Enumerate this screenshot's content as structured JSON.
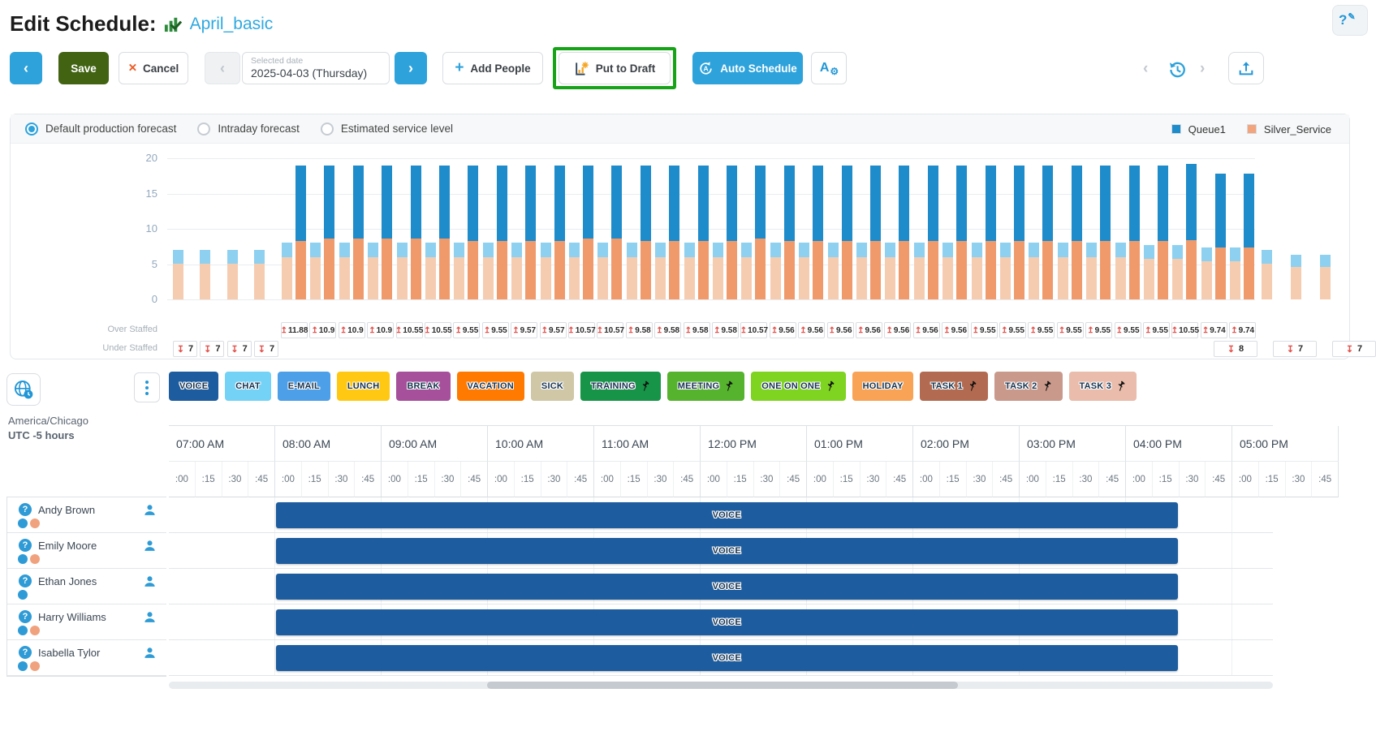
{
  "header": {
    "title": "Edit Schedule:",
    "schedule_name": "April_basic"
  },
  "icons": {
    "back": "‹",
    "next": "›",
    "prev": "‹",
    "plus": "+",
    "x": "✕",
    "question": "?",
    "pencil": "✎",
    "gear": "⚙",
    "letter_a": "A",
    "up_arrow": "↥",
    "down_arrow": "↧"
  },
  "toolbar": {
    "save": "Save",
    "cancel": "Cancel",
    "date_label": "Selected date",
    "date_value": "2025-04-03 (Thursday)",
    "add_people": "Add People",
    "put_to_draft": "Put to Draft",
    "auto_schedule": "Auto Schedule"
  },
  "forecast_panel": {
    "radios": [
      {
        "label": "Default production forecast",
        "selected": true
      },
      {
        "label": "Intraday forecast",
        "selected": false
      },
      {
        "label": "Estimated service level",
        "selected": false
      }
    ],
    "legend": [
      {
        "label": "Queue1",
        "color": "#1e8bcb"
      },
      {
        "label": "Silver_Service",
        "color": "#f2a47d"
      }
    ]
  },
  "chart_data": {
    "type": "bar",
    "title": "Default production forecast",
    "ylim": [
      0,
      20
    ],
    "yticks": [
      0,
      5,
      10,
      15,
      20
    ],
    "grid": true,
    "legend_position": "top-right",
    "colors": {
      "queue1_scheduled": "#1e8bcb",
      "queue1_forecast": "#8ed0f0",
      "silver_scheduled": "#f09a6c",
      "silver_forecast": "#f6ccb1"
    },
    "pre_shift_forecast": {
      "silver": [
        5,
        5,
        5,
        5
      ],
      "queue1": [
        2,
        2,
        2,
        2
      ]
    },
    "intervals": {
      "over_staffed": [
        "11.88",
        "10.9",
        "10.9",
        "10.9",
        "10.55",
        "10.55",
        "9.55",
        "9.55",
        "9.57",
        "9.57",
        "10.57",
        "10.57",
        "9.58",
        "9.58",
        "9.58",
        "9.58",
        "10.57",
        "9.56",
        "9.56",
        "9.56",
        "9.56",
        "9.56",
        "9.56",
        "9.56",
        "9.55",
        "9.55",
        "9.55",
        "9.55",
        "9.55",
        "9.55",
        "9.55",
        "10.55",
        "9.74",
        "9.74"
      ],
      "forecast_silver": [
        6,
        6,
        6,
        6,
        6,
        6,
        6,
        6,
        6,
        6,
        6,
        6,
        6,
        6,
        6,
        6,
        6,
        6,
        6,
        6,
        6,
        6,
        6,
        6,
        6,
        6,
        6,
        6,
        6,
        6,
        5.8,
        5.8,
        5.4,
        5.4
      ],
      "forecast_queue1": [
        2,
        2,
        2,
        2,
        2,
        2,
        2,
        2,
        2,
        2,
        2,
        2,
        2,
        2,
        2,
        2,
        2,
        2,
        2,
        2,
        2,
        2,
        2,
        2,
        2,
        2,
        2,
        2,
        2,
        2,
        1.9,
        1.9,
        1.9,
        1.9
      ],
      "scheduled_silver": [
        8.3,
        8.6,
        8.6,
        8.6,
        8.6,
        8.6,
        8.3,
        8.3,
        8.3,
        8.3,
        8.6,
        8.6,
        8.3,
        8.3,
        8.3,
        8.3,
        8.6,
        8.3,
        8.3,
        8.3,
        8.3,
        8.3,
        8.3,
        8.3,
        8.3,
        8.3,
        8.3,
        8.3,
        8.3,
        8.3,
        8.3,
        8.4,
        7.3,
        7.3
      ],
      "scheduled_queue1": [
        10.7,
        10.4,
        10.4,
        10.4,
        10.4,
        10.4,
        10.7,
        10.7,
        10.7,
        10.7,
        10.4,
        10.4,
        10.7,
        10.7,
        10.7,
        10.7,
        10.4,
        10.7,
        10.7,
        10.7,
        10.7,
        10.7,
        10.7,
        10.7,
        10.7,
        10.7,
        10.7,
        10.7,
        10.7,
        10.7,
        10.7,
        10.8,
        10.5,
        10.5
      ]
    },
    "post_shift_forecast": {
      "silver": [
        5,
        4.6,
        4.6
      ],
      "queue1": [
        2,
        1.7,
        1.7
      ]
    },
    "over_staffed_label": "Over Staffed",
    "under_staffed_label": "Under Staffed",
    "under_staffed_left": [
      "7",
      "7",
      "7",
      "7"
    ],
    "under_staffed_right": [
      "8",
      "7",
      "7"
    ]
  },
  "schedule": {
    "timezone": "America/Chicago",
    "utc_offset": "UTC -5 hours",
    "activities": [
      {
        "label": "VOICE",
        "color": "#1d5c9e",
        "pinned": false
      },
      {
        "label": "CHAT",
        "color": "#74d2f6",
        "pinned": false
      },
      {
        "label": "E-MAIL",
        "color": "#4d9fe8",
        "pinned": false
      },
      {
        "label": "LUNCH",
        "color": "#ffc812",
        "pinned": false
      },
      {
        "label": "BREAK",
        "color": "#a6509b",
        "pinned": false
      },
      {
        "label": "VACATION",
        "color": "#ff7a00",
        "pinned": false
      },
      {
        "label": "SICK",
        "color": "#cfc7a6",
        "pinned": false
      },
      {
        "label": "TRAINING",
        "color": "#179447",
        "pinned": true
      },
      {
        "label": "MEETING",
        "color": "#55b32e",
        "pinned": true
      },
      {
        "label": "ONE ON ONE",
        "color": "#7fd321",
        "pinned": true
      },
      {
        "label": "HOLIDAY",
        "color": "#f8a355",
        "pinned": false
      },
      {
        "label": "TASK 1",
        "color": "#b26b51",
        "pinned": true
      },
      {
        "label": "TASK 2",
        "color": "#c9998b",
        "pinned": true
      },
      {
        "label": "TASK 3",
        "color": "#e9bcab",
        "pinned": true
      }
    ],
    "hours": [
      "07:00 AM",
      "08:00 AM",
      "09:00 AM",
      "10:00 AM",
      "11:00 AM",
      "12:00 PM",
      "01:00 PM",
      "02:00 PM",
      "03:00 PM",
      "04:00 PM",
      "05:00 PM"
    ],
    "quarters": [
      ":00",
      ":15",
      ":30",
      ":45"
    ],
    "employees": [
      {
        "name": "Andy Brown",
        "dots": [
          "#2e9bd6",
          "#f0a27e"
        ],
        "shift": {
          "label": "VOICE",
          "color": "#1d5c9e",
          "start_hour_offset": 1,
          "duration_hours": 8.5
        }
      },
      {
        "name": "Emily Moore",
        "dots": [
          "#2e9bd6",
          "#f0a27e"
        ],
        "shift": {
          "label": "VOICE",
          "color": "#1d5c9e",
          "start_hour_offset": 1,
          "duration_hours": 8.5
        }
      },
      {
        "name": "Ethan Jones",
        "dots": [
          "#2e9bd6"
        ],
        "shift": {
          "label": "VOICE",
          "color": "#1d5c9e",
          "start_hour_offset": 1,
          "duration_hours": 8.5
        }
      },
      {
        "name": "Harry Williams",
        "dots": [
          "#2e9bd6",
          "#f0a27e"
        ],
        "shift": {
          "label": "VOICE",
          "color": "#1d5c9e",
          "start_hour_offset": 1,
          "duration_hours": 8.5
        }
      },
      {
        "name": "Isabella Tylor",
        "dots": [
          "#2e9bd6",
          "#f0a27e"
        ],
        "shift": {
          "label": "VOICE",
          "color": "#1d5c9e",
          "start_hour_offset": 1,
          "duration_hours": 8.5
        }
      }
    ]
  }
}
